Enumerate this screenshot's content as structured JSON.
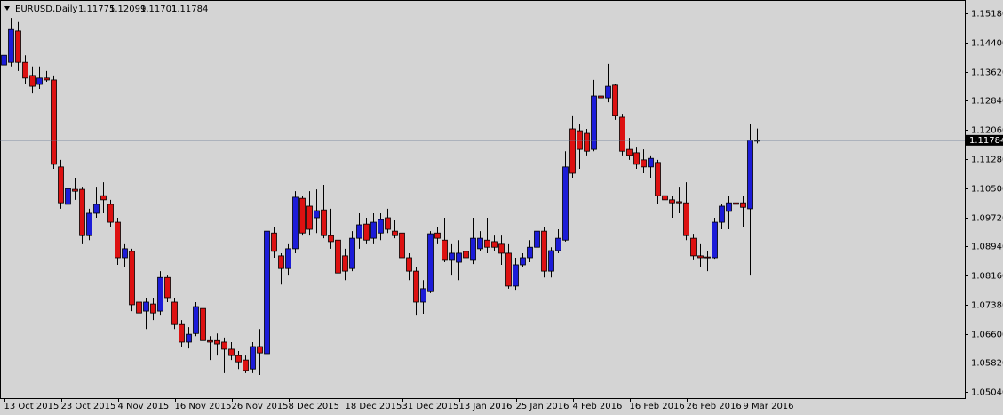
{
  "chart_data": {
    "type": "candlestick",
    "title": "EURUSD,Daily",
    "up_color": "#1c1cd8",
    "down_color": "#dd1111",
    "ylim": [
      1.0488,
      1.1554
    ],
    "yticks": [
      {
        "value": 1.1518,
        "label": "1.15180"
      },
      {
        "value": 1.144,
        "label": "1.14400"
      },
      {
        "value": 1.1362,
        "label": "1.13620"
      },
      {
        "value": 1.1284,
        "label": "1.12840"
      },
      {
        "value": 1.1206,
        "label": "1.12060"
      },
      {
        "value": 1.1128,
        "label": "1.11280"
      },
      {
        "value": 1.105,
        "label": "1.10500"
      },
      {
        "value": 1.0972,
        "label": "1.09720"
      },
      {
        "value": 1.0894,
        "label": "1.08940"
      },
      {
        "value": 1.0816,
        "label": "1.08160"
      },
      {
        "value": 1.0738,
        "label": "1.07380"
      },
      {
        "value": 1.066,
        "label": "1.06600"
      },
      {
        "value": 1.0582,
        "label": "1.05820"
      },
      {
        "value": 1.0504,
        "label": "1.05040"
      }
    ],
    "categories": [
      "13 Oct 2015",
      null,
      null,
      null,
      null,
      null,
      null,
      null,
      "23 Oct 2015",
      null,
      null,
      null,
      null,
      null,
      null,
      null,
      "4 Nov 2015",
      null,
      null,
      null,
      null,
      null,
      null,
      null,
      "16 Nov 2015",
      null,
      null,
      null,
      null,
      null,
      null,
      null,
      "26 Nov 2015",
      null,
      null,
      null,
      null,
      null,
      null,
      null,
      "8 Dec 2015",
      null,
      null,
      null,
      null,
      null,
      null,
      null,
      "18 Dec 2015",
      null,
      null,
      null,
      null,
      null,
      null,
      null,
      "31 Dec 2015",
      null,
      null,
      null,
      null,
      null,
      null,
      null,
      "13 Jan 2016",
      null,
      null,
      null,
      null,
      null,
      null,
      null,
      "25 Jan 2016",
      null,
      null,
      null,
      null,
      null,
      null,
      null,
      "4 Feb 2016",
      null,
      null,
      null,
      null,
      null,
      null,
      null,
      "16 Feb 2016",
      null,
      null,
      null,
      null,
      null,
      null,
      null,
      "26 Feb 2016",
      null,
      null,
      null,
      null,
      null,
      null,
      null,
      "9 Mar 2016",
      null,
      null
    ],
    "open": [
      1.138,
      1.1387,
      1.1471,
      1.1387,
      1.1352,
      1.1328,
      1.1345,
      1.134,
      1.1107,
      1.1007,
      1.1047,
      1.1047,
      1.0923,
      1.0983,
      1.103,
      1.1007,
      1.0959,
      1.0864,
      1.0881,
      1.0745,
      1.0721,
      1.074,
      1.0721,
      1.0811,
      1.0745,
      1.0685,
      1.0638,
      1.0661,
      1.0728,
      1.0642,
      1.0642,
      1.0638,
      1.0619,
      1.0602,
      1.059,
      1.0566,
      1.0626,
      1.0607,
      1.093,
      1.0869,
      1.0835,
      1.0888,
      1.1023,
      1.1002,
      1.0971,
      1.0992,
      1.0923,
      1.0911,
      1.0869,
      1.0835,
      1.0916,
      1.0954,
      1.0916,
      1.093,
      1.0971,
      1.0935,
      1.093,
      1.0864,
      1.0828,
      1.0745,
      1.0773,
      1.093,
      1.0911,
      1.0857,
      1.0852,
      1.0881,
      1.0857,
      1.0888,
      1.0911,
      1.0907,
      1.09,
      1.0876,
      1.0788,
      1.0845,
      1.0864,
      1.0892,
      1.0935,
      1.0828,
      1.0883,
      1.0911,
      1.1209,
      1.1204,
      1.1197,
      1.1154,
      1.1297,
      1.1292,
      1.1326,
      1.124,
      1.1154,
      1.1145,
      1.1126,
      1.1107,
      1.1119,
      1.103,
      1.1019,
      1.1014,
      1.1011,
      1.0916,
      1.0869,
      1.0866,
      1.0864,
      1.0959,
      1.0988,
      1.1011,
      1.1011,
      1.0995,
      1.11775
    ],
    "high": [
      1.1435,
      1.1506,
      1.1495,
      1.1406,
      1.1376,
      1.1376,
      1.1364,
      1.1352,
      1.1126,
      1.1078,
      1.1078,
      1.1054,
      1.0995,
      1.1054,
      1.1066,
      1.1019,
      1.0971,
      1.09,
      1.0888,
      1.0757,
      1.0757,
      1.0757,
      1.0828,
      1.0816,
      1.0757,
      1.0697,
      1.0678,
      1.0745,
      1.0733,
      1.0654,
      1.0661,
      1.065,
      1.0638,
      1.0614,
      1.0602,
      1.0638,
      1.0673,
      1.0983,
      1.0947,
      1.0876,
      1.09,
      1.1042,
      1.103,
      1.1042,
      1.1047,
      1.1059,
      1.0995,
      1.0923,
      1.0888,
      1.0935,
      1.0983,
      1.0971,
      1.0983,
      1.0983,
      1.0995,
      1.0964,
      1.0947,
      1.0876,
      1.084,
      1.0804,
      1.0935,
      1.0947,
      1.0971,
      1.09,
      1.0911,
      1.0911,
      1.0971,
      1.0935,
      1.0971,
      1.0923,
      1.0923,
      1.09,
      1.0864,
      1.0876,
      1.0911,
      1.0959,
      1.0947,
      1.0892,
      1.094,
      1.1149,
      1.1245,
      1.1221,
      1.1209,
      1.134,
      1.1316,
      1.1383,
      1.1328,
      1.1249,
      1.1185,
      1.1161,
      1.1154,
      1.1138,
      1.1126,
      1.1042,
      1.103,
      1.1054,
      1.1066,
      1.0928,
      1.09,
      1.0881,
      1.0971,
      1.1007,
      1.103,
      1.1054,
      1.103,
      1.1221,
      1.12099
    ],
    "low": [
      1.1345,
      1.1376,
      1.1364,
      1.1328,
      1.1304,
      1.1316,
      1.1335,
      1.1102,
      1.0995,
      1.0995,
      1.1019,
      1.09,
      1.0911,
      1.0971,
      1.0983,
      1.0947,
      1.0845,
      1.084,
      1.0721,
      1.0697,
      1.0673,
      1.0697,
      1.0709,
      1.0745,
      1.0673,
      1.0626,
      1.0621,
      1.0654,
      1.0631,
      1.059,
      1.0602,
      1.0555,
      1.059,
      1.0566,
      1.0555,
      1.0555,
      1.055,
      1.0519,
      1.0864,
      1.0792,
      1.0816,
      1.0876,
      1.0923,
      1.0923,
      1.093,
      1.0916,
      1.0888,
      1.0797,
      1.0804,
      1.0828,
      1.0888,
      1.09,
      1.09,
      1.0911,
      1.093,
      1.0916,
      1.085,
      1.0804,
      1.0709,
      1.0714,
      1.0769,
      1.09,
      1.0852,
      1.0816,
      1.0804,
      1.0845,
      1.0847,
      1.0881,
      1.0876,
      1.0883,
      1.0845,
      1.0781,
      1.0778,
      1.084,
      1.0852,
      1.084,
      1.0811,
      1.0811,
      1.0876,
      1.0907,
      1.1078,
      1.1102,
      1.1138,
      1.1149,
      1.128,
      1.128,
      1.1233,
      1.1138,
      1.1126,
      1.1102,
      1.109,
      1.1078,
      1.1007,
      1.0995,
      1.0971,
      1.0983,
      1.0911,
      1.0857,
      1.084,
      1.0828,
      1.0859,
      1.094,
      1.094,
      1.0995,
      1.0947,
      1.0816,
      1.11701
    ],
    "close": [
      1.1406,
      1.1475,
      1.1387,
      1.1345,
      1.1323,
      1.1345,
      1.134,
      1.1114,
      1.1011,
      1.1049,
      1.1042,
      1.0923,
      1.0983,
      1.1007,
      1.1019,
      1.0959,
      1.0864,
      1.0888,
      1.0738,
      1.0716,
      1.0745,
      1.0716,
      1.0811,
      1.0757,
      1.0685,
      1.0638,
      1.0659,
      1.0733,
      1.0642,
      1.0638,
      1.0633,
      1.0619,
      1.0602,
      1.0585,
      1.0562,
      1.0626,
      1.0609,
      1.0935,
      1.0881,
      1.0835,
      1.0888,
      1.1026,
      1.093,
      1.094,
      1.099,
      1.0923,
      1.0907,
      1.0823,
      1.0828,
      1.0916,
      1.0952,
      1.0911,
      1.0959,
      1.0966,
      1.094,
      1.0923,
      1.0864,
      1.0828,
      1.0745,
      1.0781,
      1.0928,
      1.0916,
      1.0857,
      1.0876,
      1.0876,
      1.0864,
      1.0916,
      1.0916,
      1.0892,
      1.0892,
      1.0876,
      1.0788,
      1.0845,
      1.0864,
      1.0892,
      1.0935,
      1.0828,
      1.0883,
      1.0916,
      1.1107,
      1.109,
      1.1154,
      1.1149,
      1.1297,
      1.1292,
      1.1323,
      1.1245,
      1.1149,
      1.1138,
      1.1114,
      1.1107,
      1.113,
      1.103,
      1.1019,
      1.1011,
      1.1011,
      1.0923,
      1.0869,
      1.0864,
      1.0864,
      1.0959,
      1.1002,
      1.1011,
      1.1007,
      1.0999,
      1.1178,
      1.11784
    ]
  }
}
